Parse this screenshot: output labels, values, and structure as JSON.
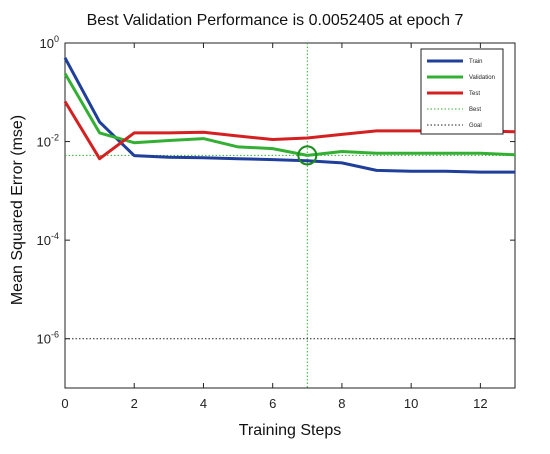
{
  "chart_data": {
    "type": "line",
    "title": "Best Validation Performance is 0.0052405 at epoch 7",
    "xlabel": "Training Steps",
    "ylabel": "Mean Squared Error  (mse)",
    "xlim": [
      0,
      13
    ],
    "ylim": [
      1e-07,
      1
    ],
    "yscale": "log",
    "x_ticks": [
      "0",
      "2",
      "4",
      "6",
      "8",
      "10",
      "12"
    ],
    "y_ticks": [
      {
        "value": 1,
        "base": "10",
        "exp": "0"
      },
      {
        "value": 0.01,
        "base": "10",
        "exp": "-2"
      },
      {
        "value": 0.0001,
        "base": "10",
        "exp": "-4"
      },
      {
        "value": 1e-06,
        "base": "10",
        "exp": "-6"
      }
    ],
    "grid": false,
    "legend_position": "top-right",
    "x": [
      0,
      1,
      2,
      3,
      4,
      5,
      6,
      7,
      8,
      9,
      10,
      11,
      12,
      13
    ],
    "series": [
      {
        "name": "Train",
        "color": "#1f3f9b",
        "values": [
          0.5,
          0.025,
          0.0052,
          0.0048,
          0.0047,
          0.0045,
          0.0043,
          0.0041,
          0.0037,
          0.0026,
          0.0025,
          0.0025,
          0.0024,
          0.0024
        ]
      },
      {
        "name": "Validation",
        "color": "#33b033",
        "values": [
          0.24,
          0.015,
          0.0095,
          0.0105,
          0.0115,
          0.0078,
          0.0072,
          0.0052405,
          0.0063,
          0.0058,
          0.0058,
          0.0058,
          0.0058,
          0.0054
        ]
      },
      {
        "name": "Test",
        "color": "#d42020",
        "values": [
          0.065,
          0.0045,
          0.015,
          0.015,
          0.0155,
          0.013,
          0.011,
          0.0118,
          0.014,
          0.0165,
          0.0165,
          0.0165,
          0.0165,
          0.0158
        ]
      }
    ],
    "reference_lines": [
      {
        "name": "Best",
        "kind": "crosshair",
        "x": 7,
        "y": 0.0052405,
        "color": "#33b033",
        "style": "dotted"
      },
      {
        "name": "Goal",
        "kind": "horizontal",
        "y": 1e-06,
        "color": "#222222",
        "style": "dotted"
      }
    ],
    "best_marker": {
      "x": 7,
      "y": 0.0052405,
      "color": "#1a8a1a"
    }
  }
}
